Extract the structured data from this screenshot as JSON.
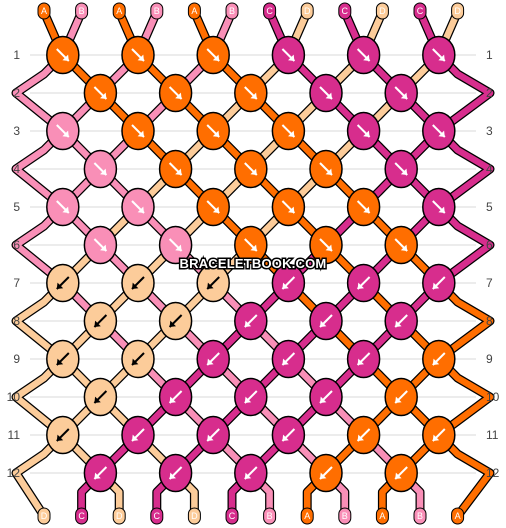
{
  "colors": {
    "A": "#ff6e00",
    "B": "#f98fb7",
    "C": "#d72d8d",
    "D": "#fccc9a"
  },
  "strands_top": [
    "A",
    "B",
    "A",
    "B",
    "A",
    "B",
    "C",
    "D",
    "C",
    "D",
    "C",
    "D"
  ],
  "strands_bottom": [
    "D",
    "C",
    "D",
    "C",
    "D",
    "C",
    "B",
    "A",
    "B",
    "A",
    "B",
    "A"
  ],
  "rows": [
    "1",
    "2",
    "3",
    "4",
    "5",
    "6",
    "7",
    "8",
    "9",
    "10",
    "11",
    "12"
  ],
  "knots": [
    [
      "A",
      "A",
      "A",
      "C",
      "C",
      "C"
    ],
    [
      "A",
      "A",
      "A",
      "C",
      "C"
    ],
    [
      "B",
      "A",
      "A",
      "A",
      "C",
      "C"
    ],
    [
      "B",
      "A",
      "A",
      "A",
      "C"
    ],
    [
      "B",
      "B",
      "A",
      "A",
      "A",
      "C"
    ],
    [
      "B",
      "B",
      "A",
      "A",
      "A"
    ],
    [
      "D",
      "D",
      "D",
      "C",
      "C",
      "C"
    ],
    [
      "D",
      "D",
      "C",
      "C",
      "C"
    ],
    [
      "D",
      "D",
      "C",
      "C",
      "C",
      "A"
    ],
    [
      "D",
      "C",
      "C",
      "C",
      "A"
    ],
    [
      "D",
      "C",
      "C",
      "C",
      "A",
      "A"
    ],
    [
      "C",
      "C",
      "C",
      "A",
      "A"
    ]
  ],
  "directions": [
    [
      "se",
      "se",
      "se",
      "se",
      "se",
      "se"
    ],
    [
      "se",
      "se",
      "se",
      "se",
      "se"
    ],
    [
      "se",
      "se",
      "se",
      "se",
      "se",
      "se"
    ],
    [
      "se",
      "se",
      "se",
      "se",
      "se"
    ],
    [
      "se",
      "se",
      "se",
      "se",
      "se",
      "se"
    ],
    [
      "se",
      "se",
      "se",
      "se",
      "se"
    ],
    [
      "sw",
      "sw",
      "sw",
      "sw",
      "sw",
      "sw"
    ],
    [
      "sw",
      "sw",
      "sw",
      "sw",
      "sw"
    ],
    [
      "sw",
      "sw",
      "sw",
      "sw",
      "sw",
      "sw"
    ],
    [
      "sw",
      "sw",
      "sw",
      "sw",
      "sw"
    ],
    [
      "sw",
      "sw",
      "sw",
      "sw",
      "sw",
      "sw"
    ],
    [
      "sw",
      "sw",
      "sw",
      "sw",
      "sw"
    ]
  ],
  "watermark": "BRACELETBOOK.COM"
}
